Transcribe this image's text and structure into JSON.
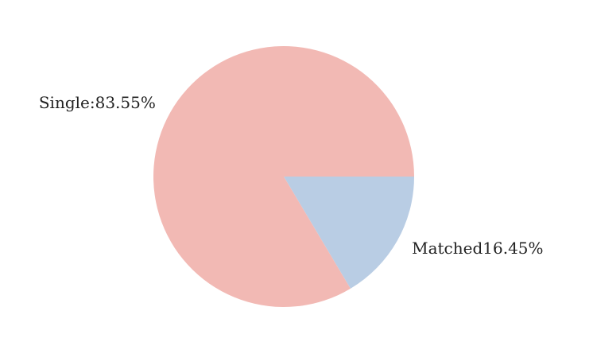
{
  "chart_data": {
    "type": "pie",
    "start_angle_deg": 0,
    "direction": "clockwise",
    "slices": [
      {
        "label": "Matched16.45%",
        "value": 16.45,
        "color": "#b9cde4"
      },
      {
        "label": "Single:83.55%",
        "value": 83.55,
        "color": "#f2b9b4"
      }
    ]
  }
}
